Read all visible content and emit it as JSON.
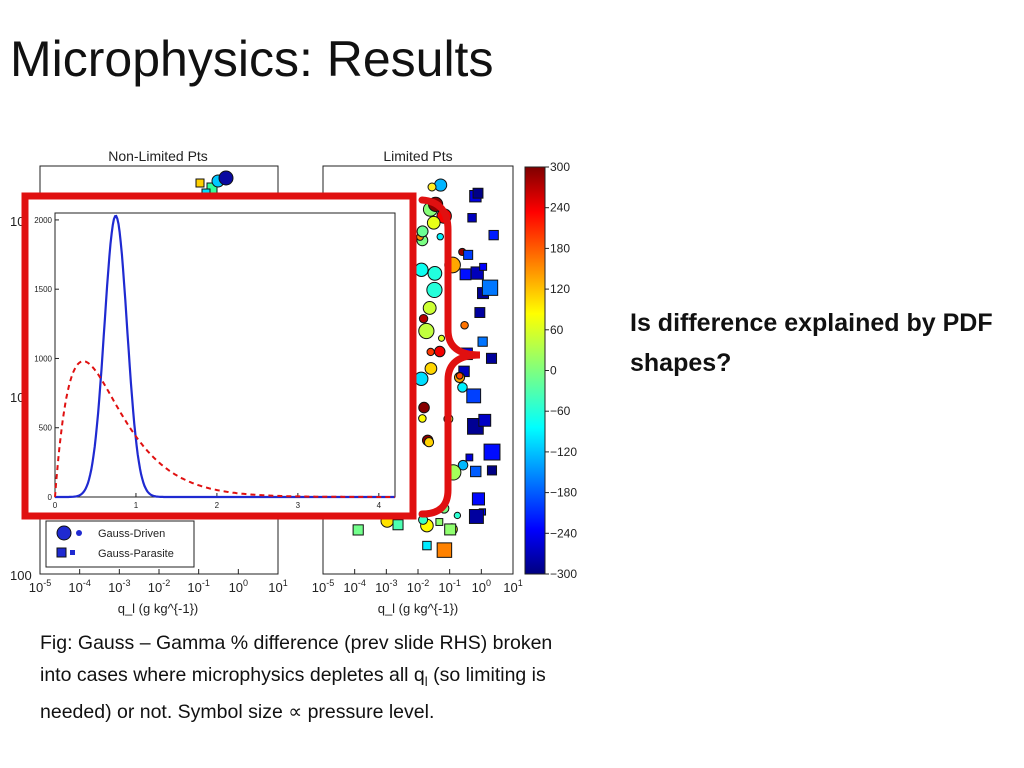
{
  "slide": {
    "title": "Microphysics: Results",
    "question": "Is difference explained by PDF shapes?",
    "caption_pre": "Fig: Gauss – Gamma % difference (prev slide RHS) broken into cases where microphysics depletes all q",
    "caption_sub": "l",
    "caption_post": " (so limiting is needed) or not. Symbol size ∝ pressure level."
  },
  "colors": {
    "highlight": "#e01010",
    "gauss": "#1f2ad1",
    "gamma": "#e01010"
  },
  "chart_data": [
    {
      "type": "scatter",
      "title": "Non-Limited Pts",
      "xlabel": "q_l (g kg^{-1})",
      "xscale": "log",
      "xticks": [
        "10-5",
        "10-4",
        "10-3",
        "10-2",
        "10-1",
        "100",
        "101"
      ],
      "yticks_visible": [
        "10",
        "10",
        "100"
      ],
      "legend": [
        {
          "label": "Gauss-Driven",
          "marker": "circle"
        },
        {
          "label": "Gauss-Parasite",
          "marker": "square"
        }
      ],
      "legend_position": "lower-left"
    },
    {
      "type": "scatter",
      "title": "Limited Pts",
      "xlabel": "q_l (g kg^{-1})",
      "xscale": "log",
      "xticks": [
        "10-5",
        "10-4",
        "10-3",
        "10-2",
        "10-1",
        "100",
        "101"
      ]
    },
    {
      "type": "colorbar",
      "ticks": [
        300,
        240,
        180,
        120,
        60,
        0,
        -60,
        -120,
        -180,
        -240,
        -300
      ],
      "range": [
        -300,
        300
      ],
      "colormap": "jet"
    },
    {
      "type": "line",
      "xlim": [
        0,
        4.2
      ],
      "ylim": [
        0,
        2050
      ],
      "xticks": [
        0,
        1,
        2,
        3,
        4
      ],
      "yticks": [
        0,
        500,
        1000,
        1500,
        2000
      ],
      "series": [
        {
          "style": "solid",
          "color": "#1f2ad1",
          "peak_x": 0.75,
          "peak_y": 2030,
          "sigma": 0.14
        },
        {
          "style": "dashed",
          "color": "#e01010",
          "shape_k": 2.0,
          "scale_theta": 0.35
        }
      ]
    }
  ]
}
